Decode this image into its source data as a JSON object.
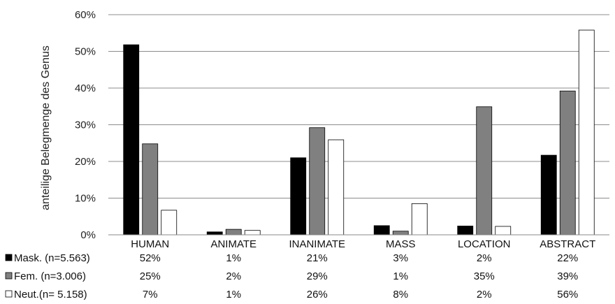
{
  "chart_data": {
    "type": "bar",
    "title": "",
    "xlabel": "",
    "ylabel": "anteilige Belegmenge des Genus",
    "ylim": [
      0,
      60
    ],
    "y_ticks": [
      "0%",
      "10%",
      "20%",
      "30%",
      "40%",
      "50%",
      "60%"
    ],
    "grid": true,
    "legend_placement": "data-table-left",
    "categories": [
      "HUMAN",
      "ANIMATE",
      "INANIMATE",
      "MASS",
      "LOCATION",
      "ABSTRACT"
    ],
    "series": [
      {
        "name": "Mask. (n=5.563)",
        "color": "#000000",
        "values": [
          51.8,
          0.8,
          21.0,
          2.5,
          2.4,
          21.7
        ],
        "labels": [
          "52%",
          "1%",
          "21%",
          "3%",
          "2%",
          "22%"
        ]
      },
      {
        "name": "Fem. (n=3.006)",
        "color": "#808080",
        "values": [
          24.8,
          1.5,
          29.2,
          1.0,
          34.9,
          39.2
        ],
        "labels": [
          "25%",
          "2%",
          "29%",
          "1%",
          "35%",
          "39%"
        ]
      },
      {
        "name": "Neut.(n= 5.158)",
        "color": "#ffffff",
        "values": [
          6.7,
          1.2,
          25.9,
          8.5,
          2.3,
          55.8
        ],
        "labels": [
          "7%",
          "1%",
          "26%",
          "8%",
          "2%",
          "56%"
        ]
      }
    ]
  }
}
